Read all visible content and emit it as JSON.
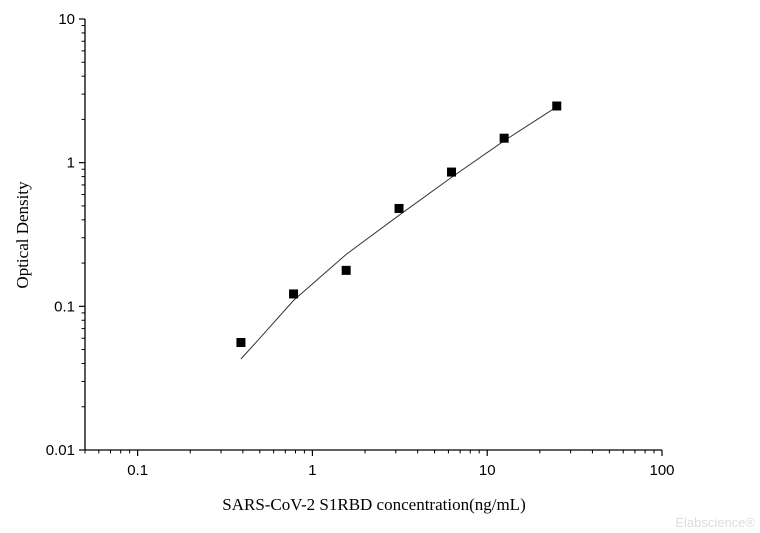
{
  "chart_data": {
    "type": "scatter",
    "xlabel": "SARS-CoV-2 S1RBD concentration(ng/mL)",
    "ylabel": "Optical Density",
    "x_scale": "log",
    "y_scale": "log",
    "xlim": [
      0.05,
      100
    ],
    "ylim": [
      0.01,
      10
    ],
    "x_ticks": [
      {
        "value": 0.1,
        "label": "0.1"
      },
      {
        "value": 1,
        "label": "1"
      },
      {
        "value": 10,
        "label": "10"
      },
      {
        "value": 100,
        "label": "100"
      }
    ],
    "y_ticks": [
      {
        "value": 0.01,
        "label": "0.01"
      },
      {
        "value": 0.1,
        "label": "0.1"
      },
      {
        "value": 1,
        "label": "1"
      },
      {
        "value": 10,
        "label": "10"
      }
    ],
    "series": [
      {
        "marker": "square",
        "color": "#000000",
        "x": [
          0.39,
          0.78,
          1.56,
          3.13,
          6.25,
          12.5,
          25
        ],
        "y": [
          0.056,
          0.122,
          0.178,
          0.48,
          0.86,
          1.48,
          2.48
        ]
      }
    ],
    "fit_curve": {
      "color": "#333333",
      "x": [
        0.39,
        0.5,
        0.78,
        1.56,
        3.13,
        6.25,
        12.5,
        25
      ],
      "y": [
        0.043,
        0.06,
        0.11,
        0.23,
        0.43,
        0.79,
        1.42,
        2.45
      ]
    },
    "grid": false,
    "legend": "none"
  },
  "watermark": "Elabscience®"
}
